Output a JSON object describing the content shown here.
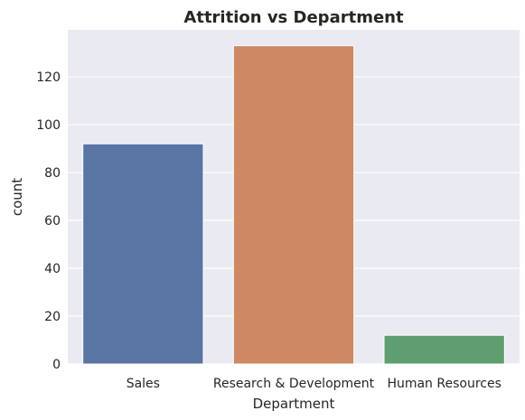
{
  "chart_data": {
    "type": "bar",
    "title": "Attrition vs Department",
    "xlabel": "Department",
    "ylabel": "count",
    "categories": [
      "Sales",
      "Research & Development",
      "Human Resources"
    ],
    "values": [
      92,
      133,
      12
    ],
    "ylim": [
      0,
      139.65
    ],
    "yticks": [
      0,
      20,
      40,
      60,
      80,
      100,
      120
    ],
    "grid": true,
    "colors": {
      "background": "#eaeaf2",
      "grid": "#ffffff",
      "bars": [
        "#5875a4",
        "#cc8963",
        "#5f9e6e"
      ],
      "text": "#262626"
    }
  }
}
